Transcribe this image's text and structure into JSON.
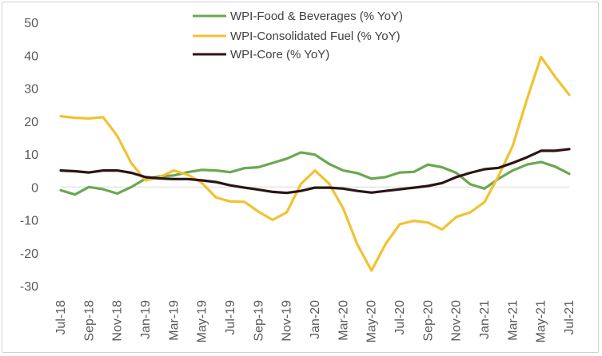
{
  "chart_data": {
    "type": "line",
    "title": "",
    "xlabel": "",
    "ylabel": "",
    "ylim": [
      -30,
      50
    ],
    "y_ticks": [
      -30,
      -20,
      -10,
      0,
      10,
      20,
      30,
      40,
      50
    ],
    "grid": false,
    "legend_position": "top-center",
    "x": [
      "Jul-18",
      "Aug-18",
      "Sep-18",
      "Oct-18",
      "Nov-18",
      "Dec-18",
      "Jan-19",
      "Feb-19",
      "Mar-19",
      "Apr-19",
      "May-19",
      "Jun-19",
      "Jul-19",
      "Aug-19",
      "Sep-19",
      "Oct-19",
      "Nov-19",
      "Dec-19",
      "Jan-20",
      "Feb-20",
      "Mar-20",
      "Apr-20",
      "May-20",
      "Jun-20",
      "Jul-20",
      "Aug-20",
      "Sep-20",
      "Oct-20",
      "Nov-20",
      "Dec-20",
      "Jan-21",
      "Feb-21",
      "Mar-21",
      "Apr-21",
      "May-21",
      "Jun-21",
      "Jul-21"
    ],
    "x_tick_labels": [
      "Jul-18",
      "Sep-18",
      "Nov-18",
      "Jan-19",
      "Mar-19",
      "May-19",
      "Jul-19",
      "Sep-19",
      "Nov-19",
      "Jan-20",
      "Mar-20",
      "May-20",
      "Jul-20",
      "Sep-20",
      "Nov-20",
      "Jan-21",
      "Mar-21",
      "May-21",
      "Jul-21"
    ],
    "series": [
      {
        "name": "WPI-Food & Beverages (% YoY)",
        "color": "#6aa84f",
        "values": [
          -1,
          -2.3,
          0,
          -0.7,
          -2,
          0,
          2.5,
          3.2,
          3.5,
          4.5,
          5.2,
          5,
          4.5,
          5.7,
          6,
          7.3,
          8.6,
          10.5,
          9.8,
          7,
          5,
          4.2,
          2.5,
          3,
          4.4,
          4.6,
          6.8,
          6,
          4.3,
          0.8,
          -0.5,
          2.5,
          5,
          6.8,
          7.6,
          6.2,
          4
        ]
      },
      {
        "name": "WPI-Consolidated Fuel (% YoY)",
        "color": "#f1c232",
        "values": [
          21.5,
          21,
          20.8,
          21.2,
          15.5,
          7.2,
          2,
          3,
          5,
          3.7,
          1.2,
          -3.2,
          -4.4,
          -4.5,
          -7.5,
          -10,
          -7.7,
          0.9,
          5,
          1,
          -6.5,
          -17.5,
          -25.4,
          -17.3,
          -11.3,
          -10.3,
          -10.8,
          -12.9,
          -9.1,
          -7.7,
          -4.6,
          3.4,
          12.5,
          26.5,
          39.5,
          33.5,
          28
        ]
      },
      {
        "name": "WPI-Core (% YoY)",
        "color": "#2b1414",
        "values": [
          5,
          4.8,
          4.4,
          5,
          5,
          4.3,
          3,
          2.6,
          2.4,
          2.4,
          2,
          1.5,
          0.5,
          -0.2,
          -0.8,
          -1.5,
          -1.8,
          -1.2,
          -0.2,
          -0.2,
          -0.5,
          -1.2,
          -1.7,
          -1.2,
          -0.7,
          -0.2,
          0.3,
          1.2,
          3,
          4.3,
          5.4,
          5.8,
          7.3,
          9,
          11,
          11,
          11.5
        ]
      }
    ]
  }
}
